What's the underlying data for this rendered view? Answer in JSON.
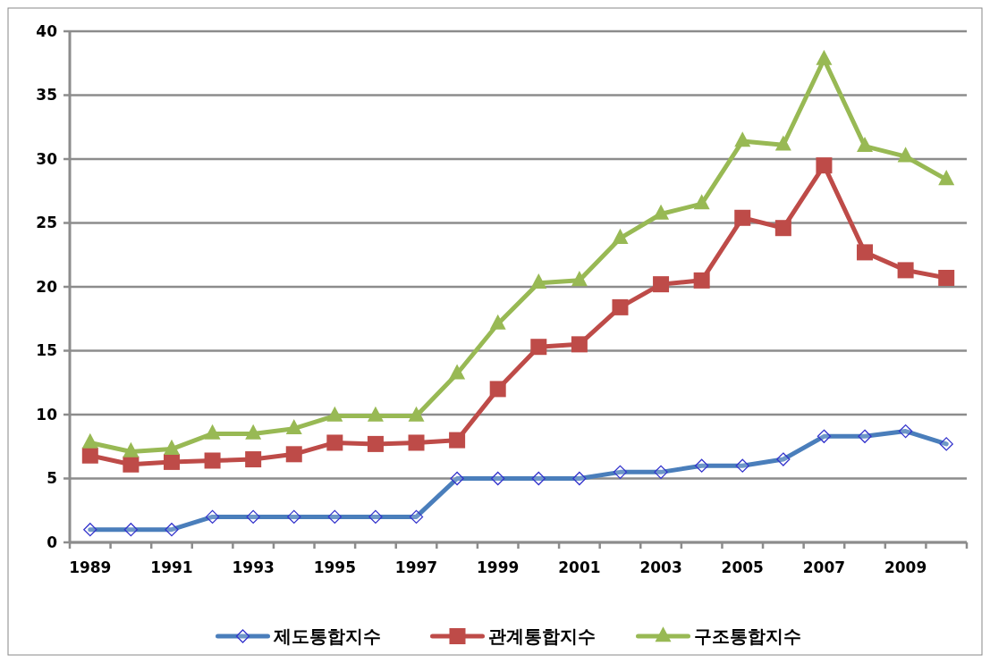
{
  "chart_data": {
    "type": "line",
    "categories": [
      "1989",
      null,
      "1991",
      null,
      "1993",
      null,
      "1995",
      null,
      "1997",
      null,
      "1999",
      null,
      "2001",
      null,
      "2003",
      null,
      "2005",
      null,
      "2007",
      null,
      "2009",
      null
    ],
    "ylim": [
      0,
      40
    ],
    "yticks": [
      0,
      5,
      10,
      15,
      20,
      25,
      30,
      35,
      40
    ],
    "grid": "y",
    "legend": "bottom",
    "series": [
      {
        "name": "제도통합지수",
        "color": "#4a7ebb",
        "marker": "diamond",
        "values": [
          1,
          1,
          1,
          2,
          2,
          2,
          2,
          2,
          2,
          5,
          5,
          5,
          5,
          5.5,
          5.5,
          6,
          6,
          6.5,
          8.3,
          8.3,
          8.7,
          7.7
        ]
      },
      {
        "name": "관계통합지수",
        "color": "#be4b48",
        "marker": "square",
        "values": [
          6.8,
          6.1,
          6.3,
          6.4,
          6.5,
          6.9,
          7.8,
          7.7,
          7.8,
          8,
          12,
          15.3,
          15.5,
          18.4,
          20.2,
          20.5,
          25.4,
          24.6,
          29.5,
          22.7,
          21.3,
          20.7
        ]
      },
      {
        "name": "구조통합지수",
        "color": "#98b954",
        "marker": "triangle",
        "values": [
          7.8,
          7.1,
          7.3,
          8.5,
          8.5,
          8.9,
          9.9,
          9.9,
          9.9,
          13.2,
          17.1,
          20.3,
          20.5,
          23.8,
          25.7,
          26.5,
          31.4,
          31.1,
          37.8,
          31,
          30.2,
          28.4
        ]
      }
    ]
  }
}
